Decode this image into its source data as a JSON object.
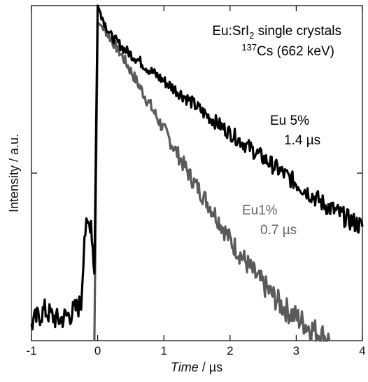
{
  "chart_data": {
    "type": "line",
    "title": "",
    "annotation_lines": [
      {
        "text": "Eu:SrI",
        "sub": "2",
        "suffix": " single crystals"
      },
      {
        "sup": "137",
        "text": "Cs (662 keV)"
      }
    ],
    "xlabel": {
      "italic": "Time",
      "unit": " / µs"
    },
    "ylabel": "Intensity / a.u.",
    "xlim": [
      -1,
      4
    ],
    "ylim": [
      0,
      1
    ],
    "x_ticks": [
      -1,
      0,
      1,
      2,
      3,
      4
    ],
    "x_tick_labels": [
      "-1",
      "0",
      "1",
      "2",
      "3",
      "4"
    ],
    "y_ticks": [
      0.5
    ],
    "y_scale": "log",
    "series": [
      {
        "label_lines": [
          "Eu 5%",
          "1.4 µs"
        ],
        "color": "#000000",
        "points": [
          [
            -1.0,
            0.05
          ],
          [
            -0.8,
            0.09
          ],
          [
            -0.6,
            0.06
          ],
          [
            -0.4,
            0.08
          ],
          [
            -0.25,
            0.11
          ],
          [
            -0.2,
            0.32
          ],
          [
            -0.1,
            0.36
          ],
          [
            -0.05,
            0.2
          ],
          [
            0.0,
            1.0
          ],
          [
            0.1,
            0.95
          ],
          [
            0.2,
            0.91
          ],
          [
            0.4,
            0.87
          ],
          [
            0.6,
            0.84
          ],
          [
            0.8,
            0.805
          ],
          [
            1.0,
            0.775
          ],
          [
            1.2,
            0.745
          ],
          [
            1.4,
            0.715
          ],
          [
            1.6,
            0.68
          ],
          [
            1.8,
            0.65
          ],
          [
            2.0,
            0.62
          ],
          [
            2.2,
            0.59
          ],
          [
            2.4,
            0.56
          ],
          [
            2.6,
            0.53
          ],
          [
            2.8,
            0.5
          ],
          [
            3.0,
            0.47
          ],
          [
            3.2,
            0.44
          ],
          [
            3.4,
            0.41
          ],
          [
            3.6,
            0.385
          ],
          [
            3.8,
            0.36
          ],
          [
            4.0,
            0.34
          ]
        ]
      },
      {
        "label_lines": [
          "Eu1%",
          "0.7 µs"
        ],
        "color": "#5a5a5a",
        "points": [
          [
            -0.05,
            0.0
          ],
          [
            0.0,
            0.95
          ],
          [
            0.1,
            0.93
          ],
          [
            0.2,
            0.9
          ],
          [
            0.3,
            0.87
          ],
          [
            0.4,
            0.84
          ],
          [
            0.6,
            0.77
          ],
          [
            0.8,
            0.7
          ],
          [
            1.0,
            0.63
          ],
          [
            1.2,
            0.56
          ],
          [
            1.4,
            0.49
          ],
          [
            1.6,
            0.43
          ],
          [
            1.8,
            0.37
          ],
          [
            2.0,
            0.3
          ],
          [
            2.2,
            0.245
          ],
          [
            2.4,
            0.19
          ],
          [
            2.6,
            0.145
          ],
          [
            2.8,
            0.1
          ],
          [
            3.0,
            0.07
          ],
          [
            3.2,
            0.04
          ],
          [
            3.4,
            0.015
          ],
          [
            3.5,
            0.0
          ]
        ]
      }
    ],
    "grid": false,
    "legend": "none"
  }
}
